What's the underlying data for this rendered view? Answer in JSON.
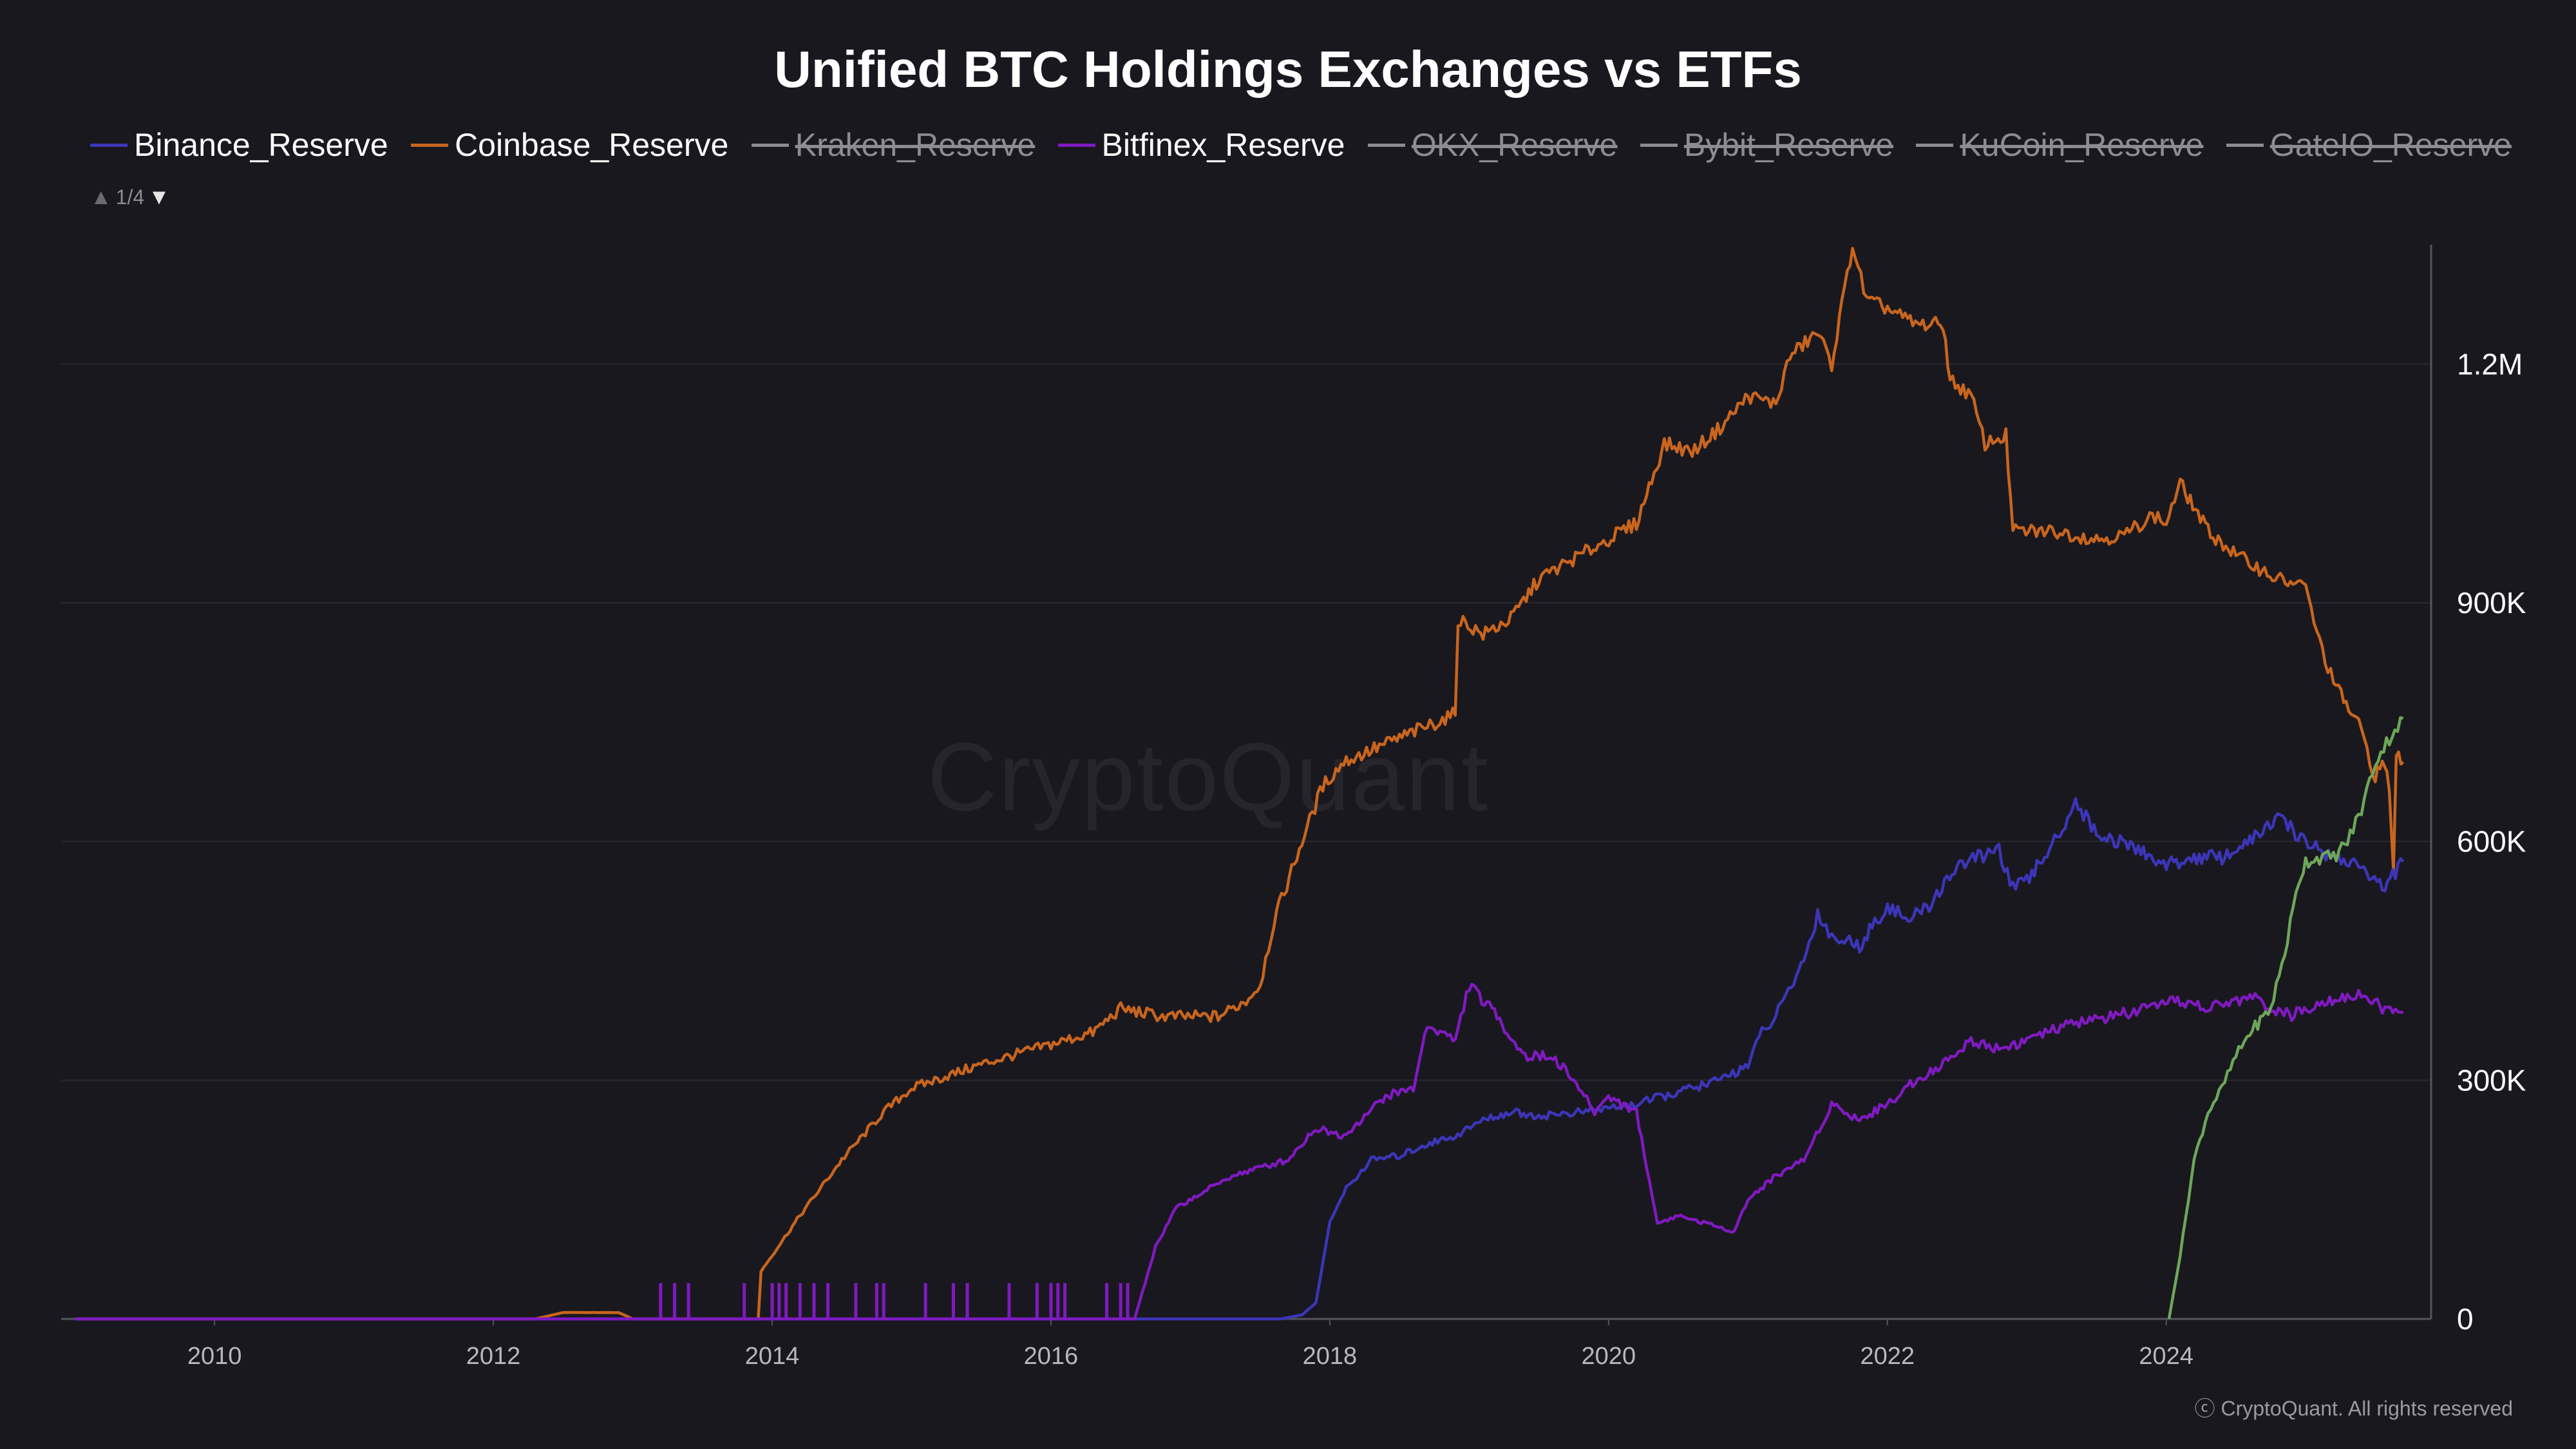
{
  "header": {
    "title": "Unified BTC Holdings Exchanges vs ETFs",
    "pager": "1/4",
    "watermark": "CryptoQuant",
    "copyright": "ⓒ CryptoQuant. All rights reserved"
  },
  "colors": {
    "background": "#19181e",
    "Binance_Reserve": "#3d35b8",
    "Coinbase_Reserve": "#c8651f",
    "Bitfinex_Reserve": "#7f1ac0",
    "ETF": "#6ea65a",
    "hidden": "#8c8c94"
  },
  "chart_data": {
    "type": "line",
    "title": "Unified BTC Holdings Exchanges vs ETFs",
    "xlabel": "",
    "ylabel": "",
    "x_ticks": [
      "2010",
      "2012",
      "2014",
      "2016",
      "2018",
      "2020",
      "2022",
      "2024"
    ],
    "y_ticks": [
      "0",
      "300K",
      "600K",
      "900K",
      "1.2M"
    ],
    "xlim": [
      2008.9,
      2025.9
    ],
    "ylim": [
      0,
      1350000
    ],
    "y_axis_position": "right",
    "grid": true,
    "legend_position": "top",
    "legend": [
      {
        "name": "Binance_Reserve",
        "color": "#3d35b8",
        "visible": true
      },
      {
        "name": "Coinbase_Reserve",
        "color": "#c8651f",
        "visible": true
      },
      {
        "name": "Kraken_Reserve",
        "color": "#8c8c94",
        "visible": false
      },
      {
        "name": "Bitfinex_Reserve",
        "color": "#7f1ac0",
        "visible": true
      },
      {
        "name": "OKX_Reserve",
        "color": "#8c8c94",
        "visible": false
      },
      {
        "name": "Bybit_Reserve",
        "color": "#8c8c94",
        "visible": false
      },
      {
        "name": "KuCoin_Reserve",
        "color": "#8c8c94",
        "visible": false
      },
      {
        "name": "GateIO_Reserve",
        "color": "#8c8c94",
        "visible": false
      }
    ],
    "series": [
      {
        "name": "Coinbase_Reserve",
        "color": "#c8651f",
        "points": [
          [
            2009.0,
            0
          ],
          [
            2012.3,
            0
          ],
          [
            2012.5,
            8000
          ],
          [
            2012.9,
            8000
          ],
          [
            2013.0,
            0
          ],
          [
            2013.9,
            0
          ],
          [
            2013.92,
            60000
          ],
          [
            2014.0,
            80000
          ],
          [
            2014.2,
            130000
          ],
          [
            2014.5,
            200000
          ],
          [
            2014.8,
            260000
          ],
          [
            2015.0,
            290000
          ],
          [
            2015.5,
            320000
          ],
          [
            2016.0,
            345000
          ],
          [
            2016.3,
            360000
          ],
          [
            2016.5,
            390000
          ],
          [
            2016.8,
            380000
          ],
          [
            2017.0,
            380000
          ],
          [
            2017.2,
            380000
          ],
          [
            2017.4,
            400000
          ],
          [
            2017.5,
            420000
          ],
          [
            2017.6,
            500000
          ],
          [
            2017.8,
            600000
          ],
          [
            2017.95,
            670000
          ],
          [
            2018.1,
            700000
          ],
          [
            2018.5,
            730000
          ],
          [
            2018.9,
            760000
          ],
          [
            2018.92,
            880000
          ],
          [
            2019.1,
            860000
          ],
          [
            2019.3,
            880000
          ],
          [
            2019.5,
            930000
          ],
          [
            2019.8,
            960000
          ],
          [
            2020.0,
            980000
          ],
          [
            2020.2,
            1000000
          ],
          [
            2020.4,
            1100000
          ],
          [
            2020.6,
            1090000
          ],
          [
            2020.8,
            1120000
          ],
          [
            2021.0,
            1160000
          ],
          [
            2021.2,
            1150000
          ],
          [
            2021.3,
            1210000
          ],
          [
            2021.5,
            1240000
          ],
          [
            2021.6,
            1200000
          ],
          [
            2021.75,
            1350000
          ],
          [
            2021.85,
            1280000
          ],
          [
            2022.0,
            1270000
          ],
          [
            2022.2,
            1250000
          ],
          [
            2022.4,
            1250000
          ],
          [
            2022.45,
            1180000
          ],
          [
            2022.6,
            1160000
          ],
          [
            2022.7,
            1100000
          ],
          [
            2022.85,
            1110000
          ],
          [
            2022.9,
            990000
          ],
          [
            2023.2,
            990000
          ],
          [
            2023.5,
            980000
          ],
          [
            2023.7,
            985000
          ],
          [
            2023.9,
            1010000
          ],
          [
            2024.0,
            1000000
          ],
          [
            2024.1,
            1050000
          ],
          [
            2024.3,
            990000
          ],
          [
            2024.5,
            960000
          ],
          [
            2024.8,
            930000
          ],
          [
            2025.0,
            920000
          ],
          [
            2025.1,
            850000
          ],
          [
            2025.2,
            800000
          ],
          [
            2025.4,
            740000
          ],
          [
            2025.5,
            680000
          ],
          [
            2025.55,
            700000
          ],
          [
            2025.6,
            670000
          ],
          [
            2025.63,
            560000
          ],
          [
            2025.65,
            710000
          ],
          [
            2025.7,
            700000
          ]
        ]
      },
      {
        "name": "Binance_Reserve",
        "color": "#3d35b8",
        "points": [
          [
            2009.0,
            0
          ],
          [
            2017.65,
            0
          ],
          [
            2017.8,
            5000
          ],
          [
            2017.9,
            20000
          ],
          [
            2018.0,
            120000
          ],
          [
            2018.1,
            160000
          ],
          [
            2018.3,
            200000
          ],
          [
            2018.5,
            205000
          ],
          [
            2018.7,
            220000
          ],
          [
            2018.9,
            230000
          ],
          [
            2019.1,
            250000
          ],
          [
            2019.3,
            260000
          ],
          [
            2019.5,
            255000
          ],
          [
            2019.8,
            260000
          ],
          [
            2020.0,
            265000
          ],
          [
            2020.2,
            270000
          ],
          [
            2020.5,
            285000
          ],
          [
            2020.8,
            300000
          ],
          [
            2021.0,
            320000
          ],
          [
            2021.1,
            360000
          ],
          [
            2021.2,
            380000
          ],
          [
            2021.4,
            450000
          ],
          [
            2021.5,
            510000
          ],
          [
            2021.6,
            480000
          ],
          [
            2021.8,
            470000
          ],
          [
            2022.0,
            520000
          ],
          [
            2022.15,
            500000
          ],
          [
            2022.3,
            520000
          ],
          [
            2022.5,
            570000
          ],
          [
            2022.8,
            590000
          ],
          [
            2022.9,
            540000
          ],
          [
            2023.0,
            550000
          ],
          [
            2023.2,
            600000
          ],
          [
            2023.35,
            650000
          ],
          [
            2023.5,
            610000
          ],
          [
            2023.8,
            590000
          ],
          [
            2024.0,
            570000
          ],
          [
            2024.2,
            580000
          ],
          [
            2024.4,
            580000
          ],
          [
            2024.6,
            600000
          ],
          [
            2024.8,
            630000
          ],
          [
            2025.0,
            600000
          ],
          [
            2025.2,
            580000
          ],
          [
            2025.4,
            570000
          ],
          [
            2025.55,
            540000
          ],
          [
            2025.7,
            575000
          ]
        ]
      },
      {
        "name": "Bitfinex_Reserve",
        "color": "#7f1ac0",
        "points": [
          [
            2009.0,
            0
          ],
          [
            2016.6,
            0
          ],
          [
            2016.75,
            90000
          ],
          [
            2016.9,
            140000
          ],
          [
            2017.1,
            160000
          ],
          [
            2017.3,
            180000
          ],
          [
            2017.5,
            190000
          ],
          [
            2017.7,
            200000
          ],
          [
            2017.9,
            240000
          ],
          [
            2018.1,
            230000
          ],
          [
            2018.4,
            280000
          ],
          [
            2018.6,
            290000
          ],
          [
            2018.7,
            370000
          ],
          [
            2018.9,
            350000
          ],
          [
            2019.0,
            420000
          ],
          [
            2019.2,
            380000
          ],
          [
            2019.4,
            330000
          ],
          [
            2019.6,
            330000
          ],
          [
            2019.75,
            300000
          ],
          [
            2019.9,
            260000
          ],
          [
            2020.0,
            280000
          ],
          [
            2020.2,
            260000
          ],
          [
            2020.35,
            120000
          ],
          [
            2020.5,
            130000
          ],
          [
            2020.7,
            120000
          ],
          [
            2020.9,
            110000
          ],
          [
            2021.0,
            150000
          ],
          [
            2021.2,
            180000
          ],
          [
            2021.4,
            200000
          ],
          [
            2021.6,
            270000
          ],
          [
            2021.8,
            250000
          ],
          [
            2022.0,
            270000
          ],
          [
            2022.2,
            300000
          ],
          [
            2022.4,
            320000
          ],
          [
            2022.6,
            350000
          ],
          [
            2022.8,
            340000
          ],
          [
            2023.0,
            350000
          ],
          [
            2023.3,
            370000
          ],
          [
            2023.6,
            380000
          ],
          [
            2023.9,
            390000
          ],
          [
            2024.1,
            400000
          ],
          [
            2024.3,
            390000
          ],
          [
            2024.6,
            405000
          ],
          [
            2024.9,
            380000
          ],
          [
            2025.1,
            400000
          ],
          [
            2025.3,
            405000
          ],
          [
            2025.4,
            410000
          ],
          [
            2025.55,
            390000
          ],
          [
            2025.7,
            385000
          ]
        ]
      },
      {
        "name": "ETF",
        "color": "#6ea65a",
        "points": [
          [
            2024.02,
            0
          ],
          [
            2024.05,
            30000
          ],
          [
            2024.1,
            80000
          ],
          [
            2024.2,
            200000
          ],
          [
            2024.3,
            260000
          ],
          [
            2024.4,
            290000
          ],
          [
            2024.5,
            330000
          ],
          [
            2024.6,
            360000
          ],
          [
            2024.75,
            390000
          ],
          [
            2024.85,
            460000
          ],
          [
            2024.95,
            550000
          ],
          [
            2025.0,
            575000
          ],
          [
            2025.1,
            580000
          ],
          [
            2025.2,
            580000
          ],
          [
            2025.3,
            600000
          ],
          [
            2025.4,
            640000
          ],
          [
            2025.5,
            700000
          ],
          [
            2025.6,
            730000
          ],
          [
            2025.7,
            755000
          ]
        ]
      }
    ],
    "spikes": {
      "name": "Bitfinex_Reserve",
      "color": "#7f1ac0",
      "years": [
        2013.2,
        2013.3,
        2013.4,
        2013.8,
        2014.0,
        2014.05,
        2014.1,
        2014.2,
        2014.3,
        2014.4,
        2014.6,
        2014.75,
        2014.8,
        2015.1,
        2015.3,
        2015.4,
        2015.7,
        2015.9,
        2016.0,
        2016.05,
        2016.1,
        2016.4,
        2016.5,
        2016.55
      ],
      "value": 45000
    }
  }
}
